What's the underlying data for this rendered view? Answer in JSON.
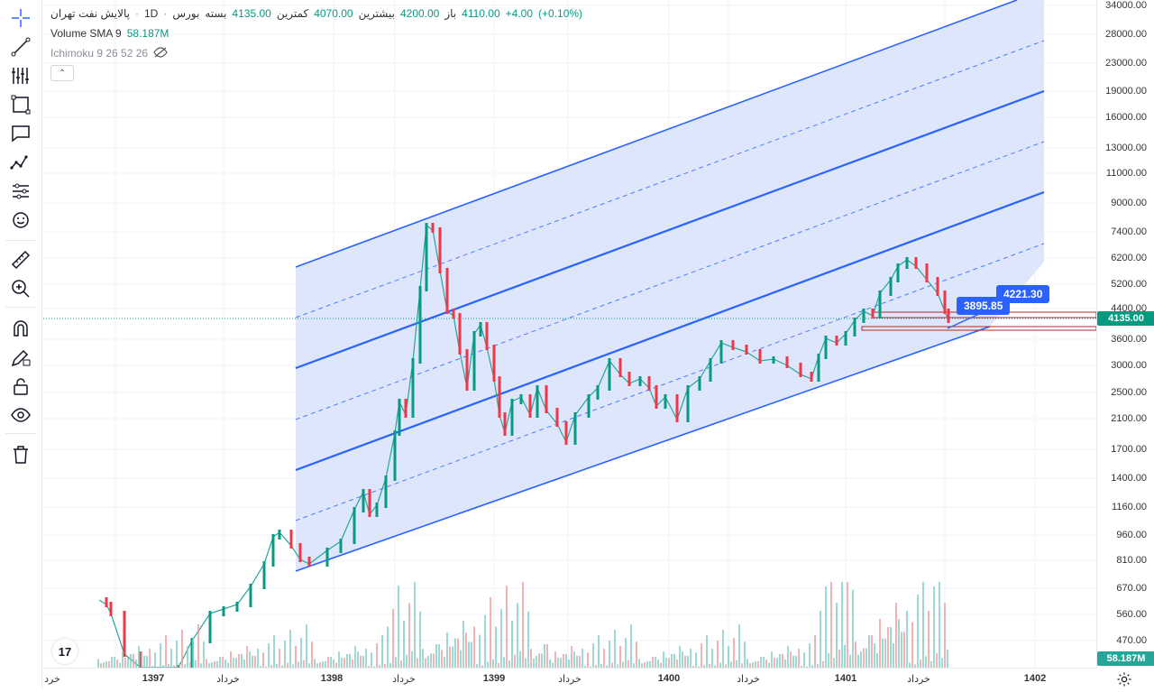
{
  "legend": {
    "symbol": "پالایش نفت تهران",
    "interval": "1D",
    "exchange": "بورس",
    "open_label": "باز",
    "open_value": "4110.00",
    "high_label": "بیشترین",
    "high_value": "4200.00",
    "low_label": "کمترین",
    "low_value": "4070.00",
    "close_label": "بسته",
    "close_value": "4135.00",
    "change": "+4.00",
    "change_pct": "(+0.10%)",
    "volume_label": "Volume SMA 9",
    "volume_value": "58.187M",
    "ichimoku_label": "Ichimoku 9 26 52 26"
  },
  "price_axis": {
    "labels": [
      "34000.00",
      "28000.00",
      "23000.00",
      "19000.00",
      "16000.00",
      "13000.00",
      "11000.00",
      "9000.00",
      "7400.00",
      "6200.00",
      "5200.00",
      "4400.00",
      "3600.00",
      "3000.00",
      "2500.00",
      "2100.00",
      "1700.00",
      "1400.00",
      "1160.00",
      "960.00",
      "810.00",
      "670.00",
      "560.00",
      "470.00"
    ],
    "last_price": "4135.00",
    "volume_badge": "58.187M"
  },
  "time_axis": [
    {
      "label": "خرد",
      "bold": false
    },
    {
      "label": "1397",
      "bold": true
    },
    {
      "label": "خرداد",
      "bold": false
    },
    {
      "label": "1398",
      "bold": true
    },
    {
      "label": "خرداد",
      "bold": false
    },
    {
      "label": "1399",
      "bold": true
    },
    {
      "label": "خرداد",
      "bold": false
    },
    {
      "label": "1400",
      "bold": true
    },
    {
      "label": "خرداد",
      "bold": false
    },
    {
      "label": "1401",
      "bold": true
    },
    {
      "label": "خرداد",
      "bold": false
    },
    {
      "label": "1402",
      "bold": true
    }
  ],
  "callouts": {
    "upper": "4221.30",
    "lower": "3895.85"
  },
  "toolbar": [
    "crosshair-icon",
    "trendline-icon",
    "fib-icon",
    "rectangle-icon",
    "text-callout-icon",
    "pattern-icon",
    "forecast-icon",
    "emoji-icon",
    "ruler-icon",
    "zoom-icon",
    "magnet-icon",
    "pencil-lock-icon",
    "lock-icon",
    "eye-icon",
    "trash-icon"
  ],
  "colors": {
    "up": "#089981",
    "down": "#f23645",
    "channel": "#2962ff",
    "channel_fill": "#dbe5fb",
    "price_line": "#089981"
  },
  "logo_text": "17"
}
